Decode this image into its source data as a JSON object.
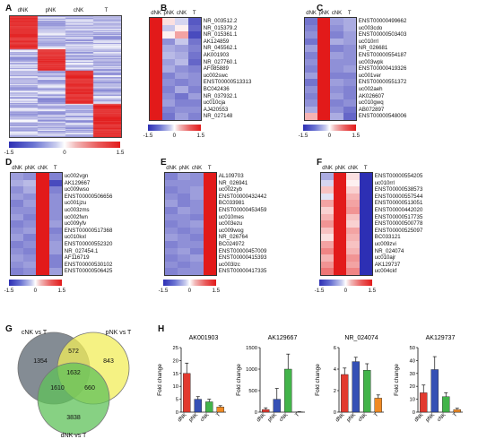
{
  "panels": {
    "A": {
      "label": "A",
      "columns": [
        "dNK",
        "pNK",
        "cNK",
        "T"
      ],
      "colorbar": [
        "-1.5",
        "0",
        "1.5"
      ]
    },
    "B": {
      "label": "B",
      "columns": [
        "dNK",
        "pNK",
        "cNK",
        "T"
      ],
      "colorbar": [
        "-1.5",
        "0",
        "1.5"
      ],
      "genes": [
        "NR_003512.2",
        "NR_015379.2",
        "NR_015361.1",
        "AK124859",
        "NR_045562.1",
        "AK001903",
        "NR_027760.1",
        "AF085889",
        "uc002swc",
        "ENST00000513313",
        "BC042436",
        "NR_037932.1",
        "uc010cja",
        "AJ420553",
        "NR_027148"
      ],
      "heat": [
        [
          1.5,
          0.2,
          -0.3,
          -1.2
        ],
        [
          1.5,
          -0.4,
          0.1,
          -1.1
        ],
        [
          1.5,
          0.1,
          0.6,
          -1.3
        ],
        [
          1.5,
          -0.8,
          -0.4,
          -1.0
        ],
        [
          1.5,
          -0.6,
          -0.7,
          -0.9
        ],
        [
          1.5,
          -0.5,
          -0.6,
          -1.0
        ],
        [
          1.5,
          -0.7,
          -0.5,
          -1.1
        ],
        [
          1.5,
          -0.6,
          -0.8,
          -0.9
        ],
        [
          1.5,
          -0.9,
          -0.7,
          -0.8
        ],
        [
          1.5,
          -0.8,
          -0.9,
          -0.8
        ],
        [
          1.5,
          -0.9,
          -0.6,
          -0.9
        ],
        [
          1.5,
          -0.8,
          -1.0,
          -0.7
        ],
        [
          1.5,
          -0.7,
          -0.9,
          -0.9
        ],
        [
          1.5,
          -0.9,
          -0.8,
          -0.8
        ],
        [
          1.5,
          -1.0,
          -0.7,
          -0.9
        ]
      ]
    },
    "C": {
      "label": "C",
      "columns": [
        "dNK",
        "pNK",
        "cNK",
        "T"
      ],
      "colorbar": [
        "-1.5",
        "0",
        "1.5"
      ],
      "genes": [
        "ENST00000499662",
        "uc003cdo",
        "ENST00000503403",
        "uc010rrl",
        "NR_026681",
        "ENST00000554187",
        "uc003wpk",
        "ENST00000419326",
        "uc001ver",
        "ENST00000551372",
        "uc002aeh",
        "AK026607",
        "uc010gwq",
        "AB072897",
        "ENST00000548006"
      ],
      "heat": [
        [
          -1.0,
          1.5,
          -0.7,
          -0.6
        ],
        [
          -0.9,
          1.5,
          -0.8,
          -0.6
        ],
        [
          -0.8,
          1.5,
          -0.9,
          -0.7
        ],
        [
          -1.0,
          1.5,
          -0.6,
          -0.7
        ],
        [
          -0.7,
          1.5,
          -0.9,
          -0.8
        ],
        [
          -0.9,
          1.5,
          -0.7,
          -0.8
        ],
        [
          -0.8,
          1.5,
          -0.8,
          -0.8
        ],
        [
          -0.9,
          1.5,
          -0.8,
          -0.7
        ],
        [
          -0.7,
          1.5,
          -0.9,
          -0.9
        ],
        [
          -1.0,
          1.5,
          -0.7,
          -0.8
        ],
        [
          -0.8,
          1.5,
          -0.8,
          -0.9
        ],
        [
          -0.9,
          1.5,
          -0.7,
          -0.9
        ],
        [
          -0.8,
          1.5,
          -0.9,
          -0.8
        ],
        [
          -0.6,
          1.5,
          -0.8,
          -1.0
        ],
        [
          0.5,
          1.5,
          -0.6,
          -1.1
        ]
      ]
    },
    "D": {
      "label": "D",
      "columns": [
        "dNK",
        "pNK",
        "cNK",
        "T"
      ],
      "colorbar": [
        "-1.5",
        "0",
        "1.5"
      ],
      "genes": [
        "uc002vgn",
        "AK129667",
        "uc009wso",
        "ENST00000506656",
        "uc001jzu",
        "uc003zms",
        "uc002fwn",
        "uc009yfv",
        "ENST00000517368",
        "uc010kxl",
        "ENST00000552320",
        "NR_027454.1",
        "AF116719",
        "ENST00000530102",
        "ENST00000506425"
      ],
      "heat": [
        [
          -0.7,
          -0.8,
          1.5,
          -0.9
        ],
        [
          -0.6,
          -0.5,
          1.5,
          -1.3
        ],
        [
          -0.8,
          -0.6,
          1.5,
          -0.9
        ],
        [
          -0.7,
          -0.8,
          1.5,
          -0.8
        ],
        [
          -0.9,
          -0.7,
          1.5,
          -0.8
        ],
        [
          -0.8,
          -0.8,
          1.5,
          -0.8
        ],
        [
          -0.7,
          -0.9,
          1.5,
          -0.8
        ],
        [
          -0.9,
          -0.8,
          1.5,
          -0.7
        ],
        [
          -0.8,
          -0.7,
          1.5,
          -0.9
        ],
        [
          -0.7,
          -0.9,
          1.5,
          -0.8
        ],
        [
          -0.9,
          -0.8,
          1.5,
          -0.7
        ],
        [
          -0.8,
          -0.9,
          1.5,
          -0.7
        ],
        [
          -0.7,
          -0.8,
          1.5,
          -0.9
        ],
        [
          -0.8,
          -0.7,
          1.5,
          -0.9
        ],
        [
          -0.9,
          -0.8,
          1.5,
          -0.7
        ]
      ]
    },
    "E": {
      "label": "E",
      "columns": [
        "dNK",
        "pNK",
        "cNK",
        "T"
      ],
      "colorbar": [
        "-1.5",
        "0",
        "1.5"
      ],
      "genes": [
        "AL109703",
        "NR_026941",
        "uc002zyb",
        "ENST00000432442",
        "BC033981",
        "ENST00000453459",
        "uc010mes",
        "uc003ezu",
        "uc009wog",
        "NR_026764",
        "BC024972",
        "ENST00000457009",
        "ENST00000415393",
        "uc003lzc",
        "ENST00000417335"
      ],
      "heat": [
        [
          -0.9,
          -0.7,
          -0.8,
          1.5
        ],
        [
          -0.8,
          -0.8,
          -0.8,
          1.5
        ],
        [
          -0.9,
          -0.8,
          -0.7,
          1.5
        ],
        [
          -0.8,
          -0.9,
          -0.7,
          1.5
        ],
        [
          -0.7,
          -0.9,
          -0.8,
          1.5
        ],
        [
          -0.9,
          -0.7,
          -0.8,
          1.5
        ],
        [
          -0.8,
          -0.8,
          -0.9,
          1.5
        ],
        [
          -0.9,
          -0.8,
          -0.7,
          1.5
        ],
        [
          -0.8,
          -0.9,
          -0.8,
          1.5
        ],
        [
          -0.7,
          -0.8,
          -0.9,
          1.5
        ],
        [
          -0.9,
          -0.8,
          -0.8,
          1.5
        ],
        [
          -0.8,
          -0.7,
          -0.9,
          1.5
        ],
        [
          -0.9,
          -0.8,
          -0.7,
          1.5
        ],
        [
          -0.8,
          -0.9,
          -0.8,
          1.5
        ],
        [
          -0.9,
          -0.8,
          -0.8,
          1.5
        ]
      ]
    },
    "F": {
      "label": "F",
      "columns": [
        "dNK",
        "pNK",
        "cNK",
        "T"
      ],
      "colorbar": [
        "-1.5",
        "0",
        "1.5"
      ],
      "genes": [
        "ENST00000554205",
        "uc010rrl",
        "ENST00000538573",
        "ENST00000557544",
        "ENST00000513051",
        "ENST00000442020",
        "ENST00000517735",
        "ENST00000500778",
        "ENST00000525097",
        "BC033121",
        "uc009zvi",
        "NR_024074",
        "uc010ajr",
        "AK129737",
        "uc004ckf"
      ],
      "heat": [
        [
          -0.6,
          1.5,
          0.2,
          -1.5
        ],
        [
          -0.3,
          1.5,
          0.1,
          -1.5
        ],
        [
          0.4,
          1.5,
          0.3,
          -1.5
        ],
        [
          -0.2,
          1.5,
          0.5,
          -1.5
        ],
        [
          0.6,
          1.5,
          0.6,
          -1.5
        ],
        [
          0.3,
          1.5,
          0.7,
          -1.5
        ],
        [
          0.5,
          1.5,
          0.4,
          -1.5
        ],
        [
          0.7,
          1.5,
          0.3,
          -1.5
        ],
        [
          0.4,
          1.5,
          0.6,
          -1.5
        ],
        [
          0.2,
          1.5,
          0.5,
          -1.5
        ],
        [
          0.6,
          1.5,
          0.4,
          -1.5
        ],
        [
          0.8,
          1.5,
          0.5,
          -1.5
        ],
        [
          0.5,
          1.5,
          0.7,
          -1.5
        ],
        [
          0.7,
          1.5,
          0.6,
          -1.5
        ],
        [
          0.9,
          1.5,
          0.8,
          -1.5
        ]
      ]
    },
    "G": {
      "label": "G"
    },
    "H": {
      "label": "H"
    }
  },
  "chart_data": [
    {
      "type": "venn",
      "sets": [
        "cNK vs T",
        "pNK vs T",
        "dNK vs T"
      ],
      "regions": {
        "cNK_only": 1354,
        "pNK_only": 843,
        "dNK_only": 3838,
        "cNK_pNK": 572,
        "cNK_dNK": 1610,
        "pNK_dNK": 660,
        "all": 1632
      },
      "colors": {
        "cNK vs T": "#5b6670",
        "pNK vs T": "#f2ee5a",
        "dNK vs T": "#5fc25a"
      }
    },
    {
      "type": "bar",
      "title": "AK001903",
      "ylabel": "Fold change",
      "categories": [
        "dNK",
        "pNK",
        "cNK",
        "T"
      ],
      "values": [
        15,
        5,
        4,
        2
      ],
      "errors": [
        4,
        1,
        1,
        0.5
      ],
      "ylim": [
        0,
        25
      ],
      "yticks": [
        0,
        5,
        10,
        15,
        20,
        25
      ],
      "colors": [
        "#e23a2f",
        "#3550b5",
        "#42b44a",
        "#f08a24"
      ]
    },
    {
      "type": "bar",
      "title": "AK129667",
      "ylabel": "Fold change",
      "categories": [
        "dNK",
        "pNK",
        "cNK",
        "T"
      ],
      "values": [
        60,
        300,
        1000,
        5
      ],
      "errors": [
        40,
        250,
        350,
        5
      ],
      "ylim": [
        0,
        1500
      ],
      "yticks": [
        0,
        500,
        1000,
        1500
      ],
      "colors": [
        "#e23a2f",
        "#3550b5",
        "#42b44a",
        "#f08a24"
      ]
    },
    {
      "type": "bar",
      "title": "NR_024074",
      "ylabel": "Fold change",
      "categories": [
        "dNK",
        "pNK",
        "cNK",
        "T"
      ],
      "values": [
        3.5,
        4.7,
        3.9,
        1.3
      ],
      "errors": [
        0.6,
        0.4,
        0.6,
        0.3
      ],
      "ylim": [
        0,
        6
      ],
      "yticks": [
        0,
        2,
        4,
        6
      ],
      "colors": [
        "#e23a2f",
        "#3550b5",
        "#42b44a",
        "#f08a24"
      ]
    },
    {
      "type": "bar",
      "title": "AK129737",
      "ylabel": "Fold change",
      "categories": [
        "dNK",
        "pNK",
        "cNK",
        "T"
      ],
      "values": [
        15,
        33,
        12,
        2
      ],
      "errors": [
        6,
        10,
        3,
        1
      ],
      "ylim": [
        0,
        50
      ],
      "yticks": [
        0,
        10,
        20,
        30,
        40,
        50
      ],
      "colors": [
        "#e23a2f",
        "#3550b5",
        "#42b44a",
        "#f08a24"
      ]
    }
  ]
}
